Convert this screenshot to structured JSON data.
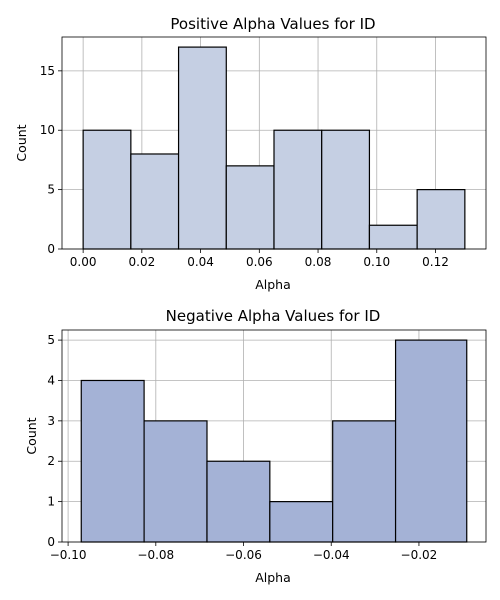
{
  "chart_data": [
    {
      "type": "bar",
      "title": "Positive Alpha Values for ID",
      "xlabel": "Alpha",
      "ylabel": "Count",
      "bin_edges": [
        0.0,
        0.01625,
        0.0325,
        0.04875,
        0.065,
        0.08125,
        0.0975,
        0.11375,
        0.13
      ],
      "values": [
        10,
        8,
        17,
        7,
        10,
        10,
        2,
        5
      ],
      "xlim": [
        -0.0072,
        0.1372
      ],
      "ylim": [
        0,
        17.85
      ],
      "xticks": [
        0.0,
        0.02,
        0.04,
        0.06,
        0.08,
        0.1,
        0.12
      ],
      "xtick_labels": [
        "0.00",
        "0.02",
        "0.04",
        "0.06",
        "0.08",
        "0.10",
        "0.12"
      ],
      "yticks": [
        0,
        5,
        10,
        15
      ],
      "ytick_labels": [
        "0",
        "5",
        "10",
        "15"
      ],
      "bar_color": "#c5cfe3",
      "grid": true
    },
    {
      "type": "bar",
      "title": "Negative Alpha Values for ID",
      "xlabel": "Alpha",
      "ylabel": "Count",
      "bin_edges": [
        -0.097,
        -0.08267,
        -0.06833,
        -0.054,
        -0.03967,
        -0.02533,
        -0.0091
      ],
      "values": [
        4,
        3,
        2,
        1,
        3,
        5
      ],
      "xlim": [
        -0.10139,
        -0.00471
      ],
      "ylim": [
        0,
        5.25
      ],
      "xticks": [
        -0.1,
        -0.08,
        -0.06,
        -0.04,
        -0.02
      ],
      "xtick_labels": [
        "−0.10",
        "−0.08",
        "−0.06",
        "−0.04",
        "−0.02"
      ],
      "yticks": [
        0,
        1,
        2,
        3,
        4,
        5
      ],
      "ytick_labels": [
        "0",
        "1",
        "2",
        "3",
        "4",
        "5"
      ],
      "bar_color": "#a4b2d6",
      "grid": true
    }
  ]
}
